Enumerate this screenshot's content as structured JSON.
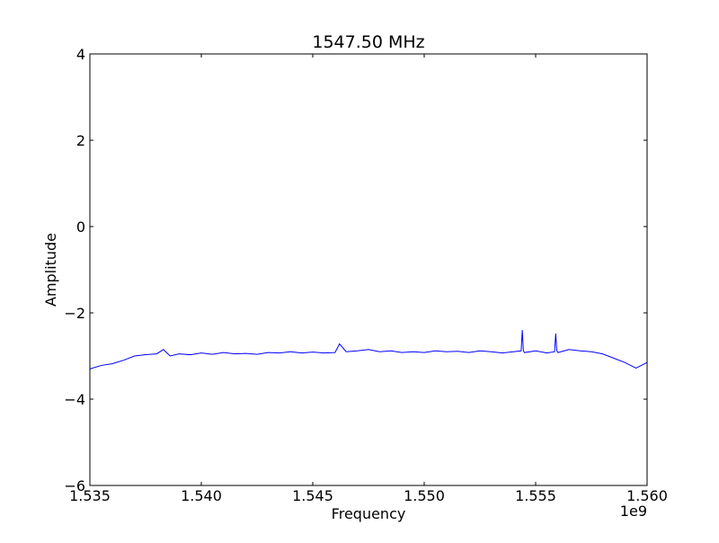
{
  "chart_data": {
    "type": "line",
    "title": "1547.50 MHz",
    "xlabel": "Frequency",
    "ylabel": "Amplitude",
    "x_offset_label": "1e9",
    "xlim": [
      1.535,
      1.56
    ],
    "ylim": [
      -6,
      4
    ],
    "xticks": [
      1.535,
      1.54,
      1.545,
      1.55,
      1.555,
      1.56
    ],
    "xtick_labels": [
      "1.535",
      "1.540",
      "1.545",
      "1.550",
      "1.555",
      "1.560"
    ],
    "yticks": [
      -6,
      -4,
      -2,
      0,
      2,
      4
    ],
    "ytick_labels": [
      "−6",
      "−4",
      "−2",
      "0",
      "2",
      "4"
    ],
    "grid": false,
    "series": [
      {
        "color": "#0000ff",
        "x": [
          1.535,
          1.5355,
          1.536,
          1.5365,
          1.537,
          1.5375,
          1.538,
          1.5383,
          1.5386,
          1.539,
          1.5395,
          1.54,
          1.5405,
          1.541,
          1.5415,
          1.542,
          1.5425,
          1.543,
          1.5435,
          1.544,
          1.5445,
          1.545,
          1.5455,
          1.546,
          1.5462,
          1.5465,
          1.547,
          1.5475,
          1.548,
          1.5485,
          1.549,
          1.5495,
          1.55,
          1.5505,
          1.551,
          1.5515,
          1.552,
          1.5525,
          1.553,
          1.5535,
          1.554,
          1.55435,
          1.5544,
          1.55445,
          1.5545,
          1.555,
          1.5555,
          1.55585,
          1.5559,
          1.55595,
          1.556,
          1.5565,
          1.557,
          1.5575,
          1.558,
          1.5585,
          1.559,
          1.5595,
          1.56
        ],
        "y": [
          -3.3,
          -3.22,
          -3.18,
          -3.1,
          -3.0,
          -2.97,
          -2.95,
          -2.85,
          -3.0,
          -2.95,
          -2.97,
          -2.93,
          -2.96,
          -2.92,
          -2.95,
          -2.94,
          -2.96,
          -2.92,
          -2.93,
          -2.9,
          -2.93,
          -2.91,
          -2.93,
          -2.92,
          -2.72,
          -2.9,
          -2.88,
          -2.85,
          -2.9,
          -2.88,
          -2.92,
          -2.9,
          -2.92,
          -2.88,
          -2.9,
          -2.89,
          -2.92,
          -2.88,
          -2.9,
          -2.93,
          -2.9,
          -2.88,
          -2.4,
          -2.88,
          -2.92,
          -2.88,
          -2.93,
          -2.9,
          -2.48,
          -2.88,
          -2.92,
          -2.85,
          -2.88,
          -2.9,
          -2.95,
          -3.05,
          -3.15,
          -3.28,
          -3.15
        ]
      }
    ]
  }
}
